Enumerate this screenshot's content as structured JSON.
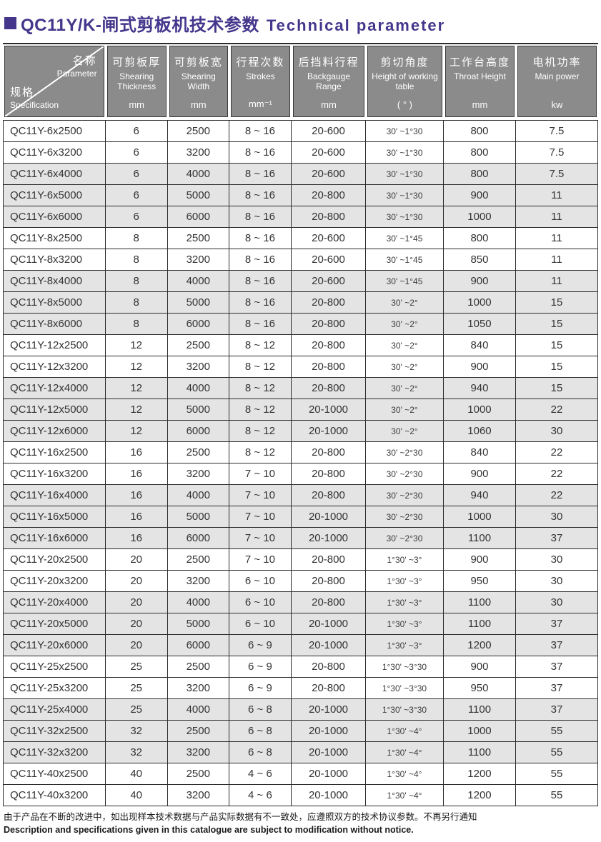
{
  "title": {
    "zh": "QC11Y/K-闸式剪板机技术参数",
    "en": "Technical parameter"
  },
  "colors": {
    "accent_purple": "#45368c",
    "header_gray": "#8b8b8b",
    "row_shade": "#e4e4e4",
    "border": "#2b2b2b"
  },
  "header": {
    "spec": {
      "zh_top": "名称",
      "en_top": "Parameter",
      "zh_bottom": "规格",
      "en_bottom": "Specification"
    },
    "cols": [
      {
        "zh": "可剪板厚",
        "en": "Shearing Thickness",
        "unit": "mm"
      },
      {
        "zh": "可剪板宽",
        "en": "Shearing Width",
        "unit": "mm"
      },
      {
        "zh": "行程次数",
        "en": "Strokes",
        "unit": "mm⁻¹"
      },
      {
        "zh": "后挡料行程",
        "en": "Backgauge Range",
        "unit": "mm"
      },
      {
        "zh": "剪切角度",
        "en": "Height of working table",
        "unit": "( ° )"
      },
      {
        "zh": "工作台高度",
        "en": "Throat Height",
        "unit": "mm"
      },
      {
        "zh": "电机功率",
        "en": "Main power",
        "unit": "kw"
      }
    ]
  },
  "rows": [
    {
      "spec": "QC11Y-6x2500",
      "thickness": "6",
      "width": "2500",
      "strokes": "8 ~ 16",
      "backgauge": "20-600",
      "angle": "30' ~1°30",
      "throat": "800",
      "power": "7.5",
      "shaded": false
    },
    {
      "spec": "QC11Y-6x3200",
      "thickness": "6",
      "width": "3200",
      "strokes": "8 ~ 16",
      "backgauge": "20-600",
      "angle": "30' ~1°30",
      "throat": "800",
      "power": "7.5",
      "shaded": false
    },
    {
      "spec": "QC11Y-6x4000",
      "thickness": "6",
      "width": "4000",
      "strokes": "8 ~ 16",
      "backgauge": "20-600",
      "angle": "30' ~1°30",
      "throat": "800",
      "power": "7.5",
      "shaded": true
    },
    {
      "spec": "QC11Y-6x5000",
      "thickness": "6",
      "width": "5000",
      "strokes": "8 ~ 16",
      "backgauge": "20-800",
      "angle": "30' ~1°30",
      "throat": "900",
      "power": "11",
      "shaded": true
    },
    {
      "spec": "QC11Y-6x6000",
      "thickness": "6",
      "width": "6000",
      "strokes": "8 ~ 16",
      "backgauge": "20-800",
      "angle": "30' ~1°30",
      "throat": "1000",
      "power": "11",
      "shaded": true
    },
    {
      "spec": "QC11Y-8x2500",
      "thickness": "8",
      "width": "2500",
      "strokes": "8 ~ 16",
      "backgauge": "20-600",
      "angle": "30' ~1°45",
      "throat": "800",
      "power": "11",
      "shaded": false
    },
    {
      "spec": "QC11Y-8x3200",
      "thickness": "8",
      "width": "3200",
      "strokes": "8 ~ 16",
      "backgauge": "20-600",
      "angle": "30' ~1°45",
      "throat": "850",
      "power": "11",
      "shaded": false
    },
    {
      "spec": "QC11Y-8x4000",
      "thickness": "8",
      "width": "4000",
      "strokes": "8 ~ 16",
      "backgauge": "20-600",
      "angle": "30' ~1°45",
      "throat": "900",
      "power": "11",
      "shaded": true
    },
    {
      "spec": "QC11Y-8x5000",
      "thickness": "8",
      "width": "5000",
      "strokes": "8 ~ 16",
      "backgauge": "20-800",
      "angle": "30' ~2°",
      "throat": "1000",
      "power": "15",
      "shaded": true
    },
    {
      "spec": "QC11Y-8x6000",
      "thickness": "8",
      "width": "6000",
      "strokes": "8 ~ 16",
      "backgauge": "20-800",
      "angle": "30' ~2°",
      "throat": "1050",
      "power": "15",
      "shaded": true
    },
    {
      "spec": "QC11Y-12x2500",
      "thickness": "12",
      "width": "2500",
      "strokes": "8 ~ 12",
      "backgauge": "20-800",
      "angle": "30' ~2°",
      "throat": "840",
      "power": "15",
      "shaded": false
    },
    {
      "spec": "QC11Y-12x3200",
      "thickness": "12",
      "width": "3200",
      "strokes": "8 ~ 12",
      "backgauge": "20-800",
      "angle": "30' ~2°",
      "throat": "900",
      "power": "15",
      "shaded": false
    },
    {
      "spec": "QC11Y-12x4000",
      "thickness": "12",
      "width": "4000",
      "strokes": "8 ~ 12",
      "backgauge": "20-800",
      "angle": "30' ~2°",
      "throat": "940",
      "power": "15",
      "shaded": true
    },
    {
      "spec": "QC11Y-12x5000",
      "thickness": "12",
      "width": "5000",
      "strokes": "8 ~ 12",
      "backgauge": "20-1000",
      "angle": "30' ~2°",
      "throat": "1000",
      "power": "22",
      "shaded": true
    },
    {
      "spec": "QC11Y-12x6000",
      "thickness": "12",
      "width": "6000",
      "strokes": "8 ~ 12",
      "backgauge": "20-1000",
      "angle": "30' ~2°",
      "throat": "1060",
      "power": "30",
      "shaded": true
    },
    {
      "spec": "QC11Y-16x2500",
      "thickness": "16",
      "width": "2500",
      "strokes": "8 ~ 12",
      "backgauge": "20-800",
      "angle": "30' ~2°30",
      "throat": "840",
      "power": "22",
      "shaded": false
    },
    {
      "spec": "QC11Y-16x3200",
      "thickness": "16",
      "width": "3200",
      "strokes": "7 ~ 10",
      "backgauge": "20-800",
      "angle": "30' ~2°30",
      "throat": "900",
      "power": "22",
      "shaded": false
    },
    {
      "spec": "QC11Y-16x4000",
      "thickness": "16",
      "width": "4000",
      "strokes": "7 ~ 10",
      "backgauge": "20-800",
      "angle": "30' ~2°30",
      "throat": "940",
      "power": "22",
      "shaded": true
    },
    {
      "spec": "QC11Y-16x5000",
      "thickness": "16",
      "width": "5000",
      "strokes": "7 ~ 10",
      "backgauge": "20-1000",
      "angle": "30' ~2°30",
      "throat": "1000",
      "power": "30",
      "shaded": true
    },
    {
      "spec": "QC11Y-16x6000",
      "thickness": "16",
      "width": "6000",
      "strokes": "7 ~ 10",
      "backgauge": "20-1000",
      "angle": "30' ~2°30",
      "throat": "1100",
      "power": "37",
      "shaded": true
    },
    {
      "spec": "QC11Y-20x2500",
      "thickness": "20",
      "width": "2500",
      "strokes": "7 ~ 10",
      "backgauge": "20-800",
      "angle": "1°30' ~3°",
      "throat": "900",
      "power": "30",
      "shaded": false
    },
    {
      "spec": "QC11Y-20x3200",
      "thickness": "20",
      "width": "3200",
      "strokes": "6 ~ 10",
      "backgauge": "20-800",
      "angle": "1°30' ~3°",
      "throat": "950",
      "power": "30",
      "shaded": false
    },
    {
      "spec": "QC11Y-20x4000",
      "thickness": "20",
      "width": "4000",
      "strokes": "6 ~ 10",
      "backgauge": "20-800",
      "angle": "1°30' ~3°",
      "throat": "1100",
      "power": "30",
      "shaded": true
    },
    {
      "spec": "QC11Y-20x5000",
      "thickness": "20",
      "width": "5000",
      "strokes": "6 ~ 10",
      "backgauge": "20-1000",
      "angle": "1°30' ~3°",
      "throat": "1100",
      "power": "37",
      "shaded": true
    },
    {
      "spec": "QC11Y-20x6000",
      "thickness": "20",
      "width": "6000",
      "strokes": "6 ~ 9",
      "backgauge": "20-1000",
      "angle": "1°30' ~3°",
      "throat": "1200",
      "power": "37",
      "shaded": true
    },
    {
      "spec": "QC11Y-25x2500",
      "thickness": "25",
      "width": "2500",
      "strokes": "6 ~ 9",
      "backgauge": "20-800",
      "angle": "1°30' ~3°30",
      "throat": "900",
      "power": "37",
      "shaded": false
    },
    {
      "spec": "QC11Y-25x3200",
      "thickness": "25",
      "width": "3200",
      "strokes": "6 ~ 9",
      "backgauge": "20-800",
      "angle": "1°30' ~3°30",
      "throat": "950",
      "power": "37",
      "shaded": false
    },
    {
      "spec": "QC11Y-25x4000",
      "thickness": "25",
      "width": "4000",
      "strokes": "6 ~ 8",
      "backgauge": "20-1000",
      "angle": "1°30' ~3°30",
      "throat": "1100",
      "power": "37",
      "shaded": true
    },
    {
      "spec": "QC11Y-32x2500",
      "thickness": "32",
      "width": "2500",
      "strokes": "6 ~ 8",
      "backgauge": "20-1000",
      "angle": "1°30' ~4°",
      "throat": "1000",
      "power": "55",
      "shaded": true
    },
    {
      "spec": "QC11Y-32x3200",
      "thickness": "32",
      "width": "3200",
      "strokes": "6 ~ 8",
      "backgauge": "20-1000",
      "angle": "1°30' ~4°",
      "throat": "1100",
      "power": "55",
      "shaded": true
    },
    {
      "spec": "QC11Y-40x2500",
      "thickness": "40",
      "width": "2500",
      "strokes": "4 ~ 6",
      "backgauge": "20-1000",
      "angle": "1°30' ~4°",
      "throat": "1200",
      "power": "55",
      "shaded": false
    },
    {
      "spec": "QC11Y-40x3200",
      "thickness": "40",
      "width": "3200",
      "strokes": "4 ~ 6",
      "backgauge": "20-1000",
      "angle": "1°30' ~4°",
      "throat": "1200",
      "power": "55",
      "shaded": false
    }
  ],
  "footer": {
    "zh": "由于产品在不断的改进中，如出现样本技术数据与产品实际数据有不一致处，应遵照双方的技术协议参数。不再另行通知",
    "en": "Description and specifications given in this catalogue are subject to modification without notice."
  }
}
